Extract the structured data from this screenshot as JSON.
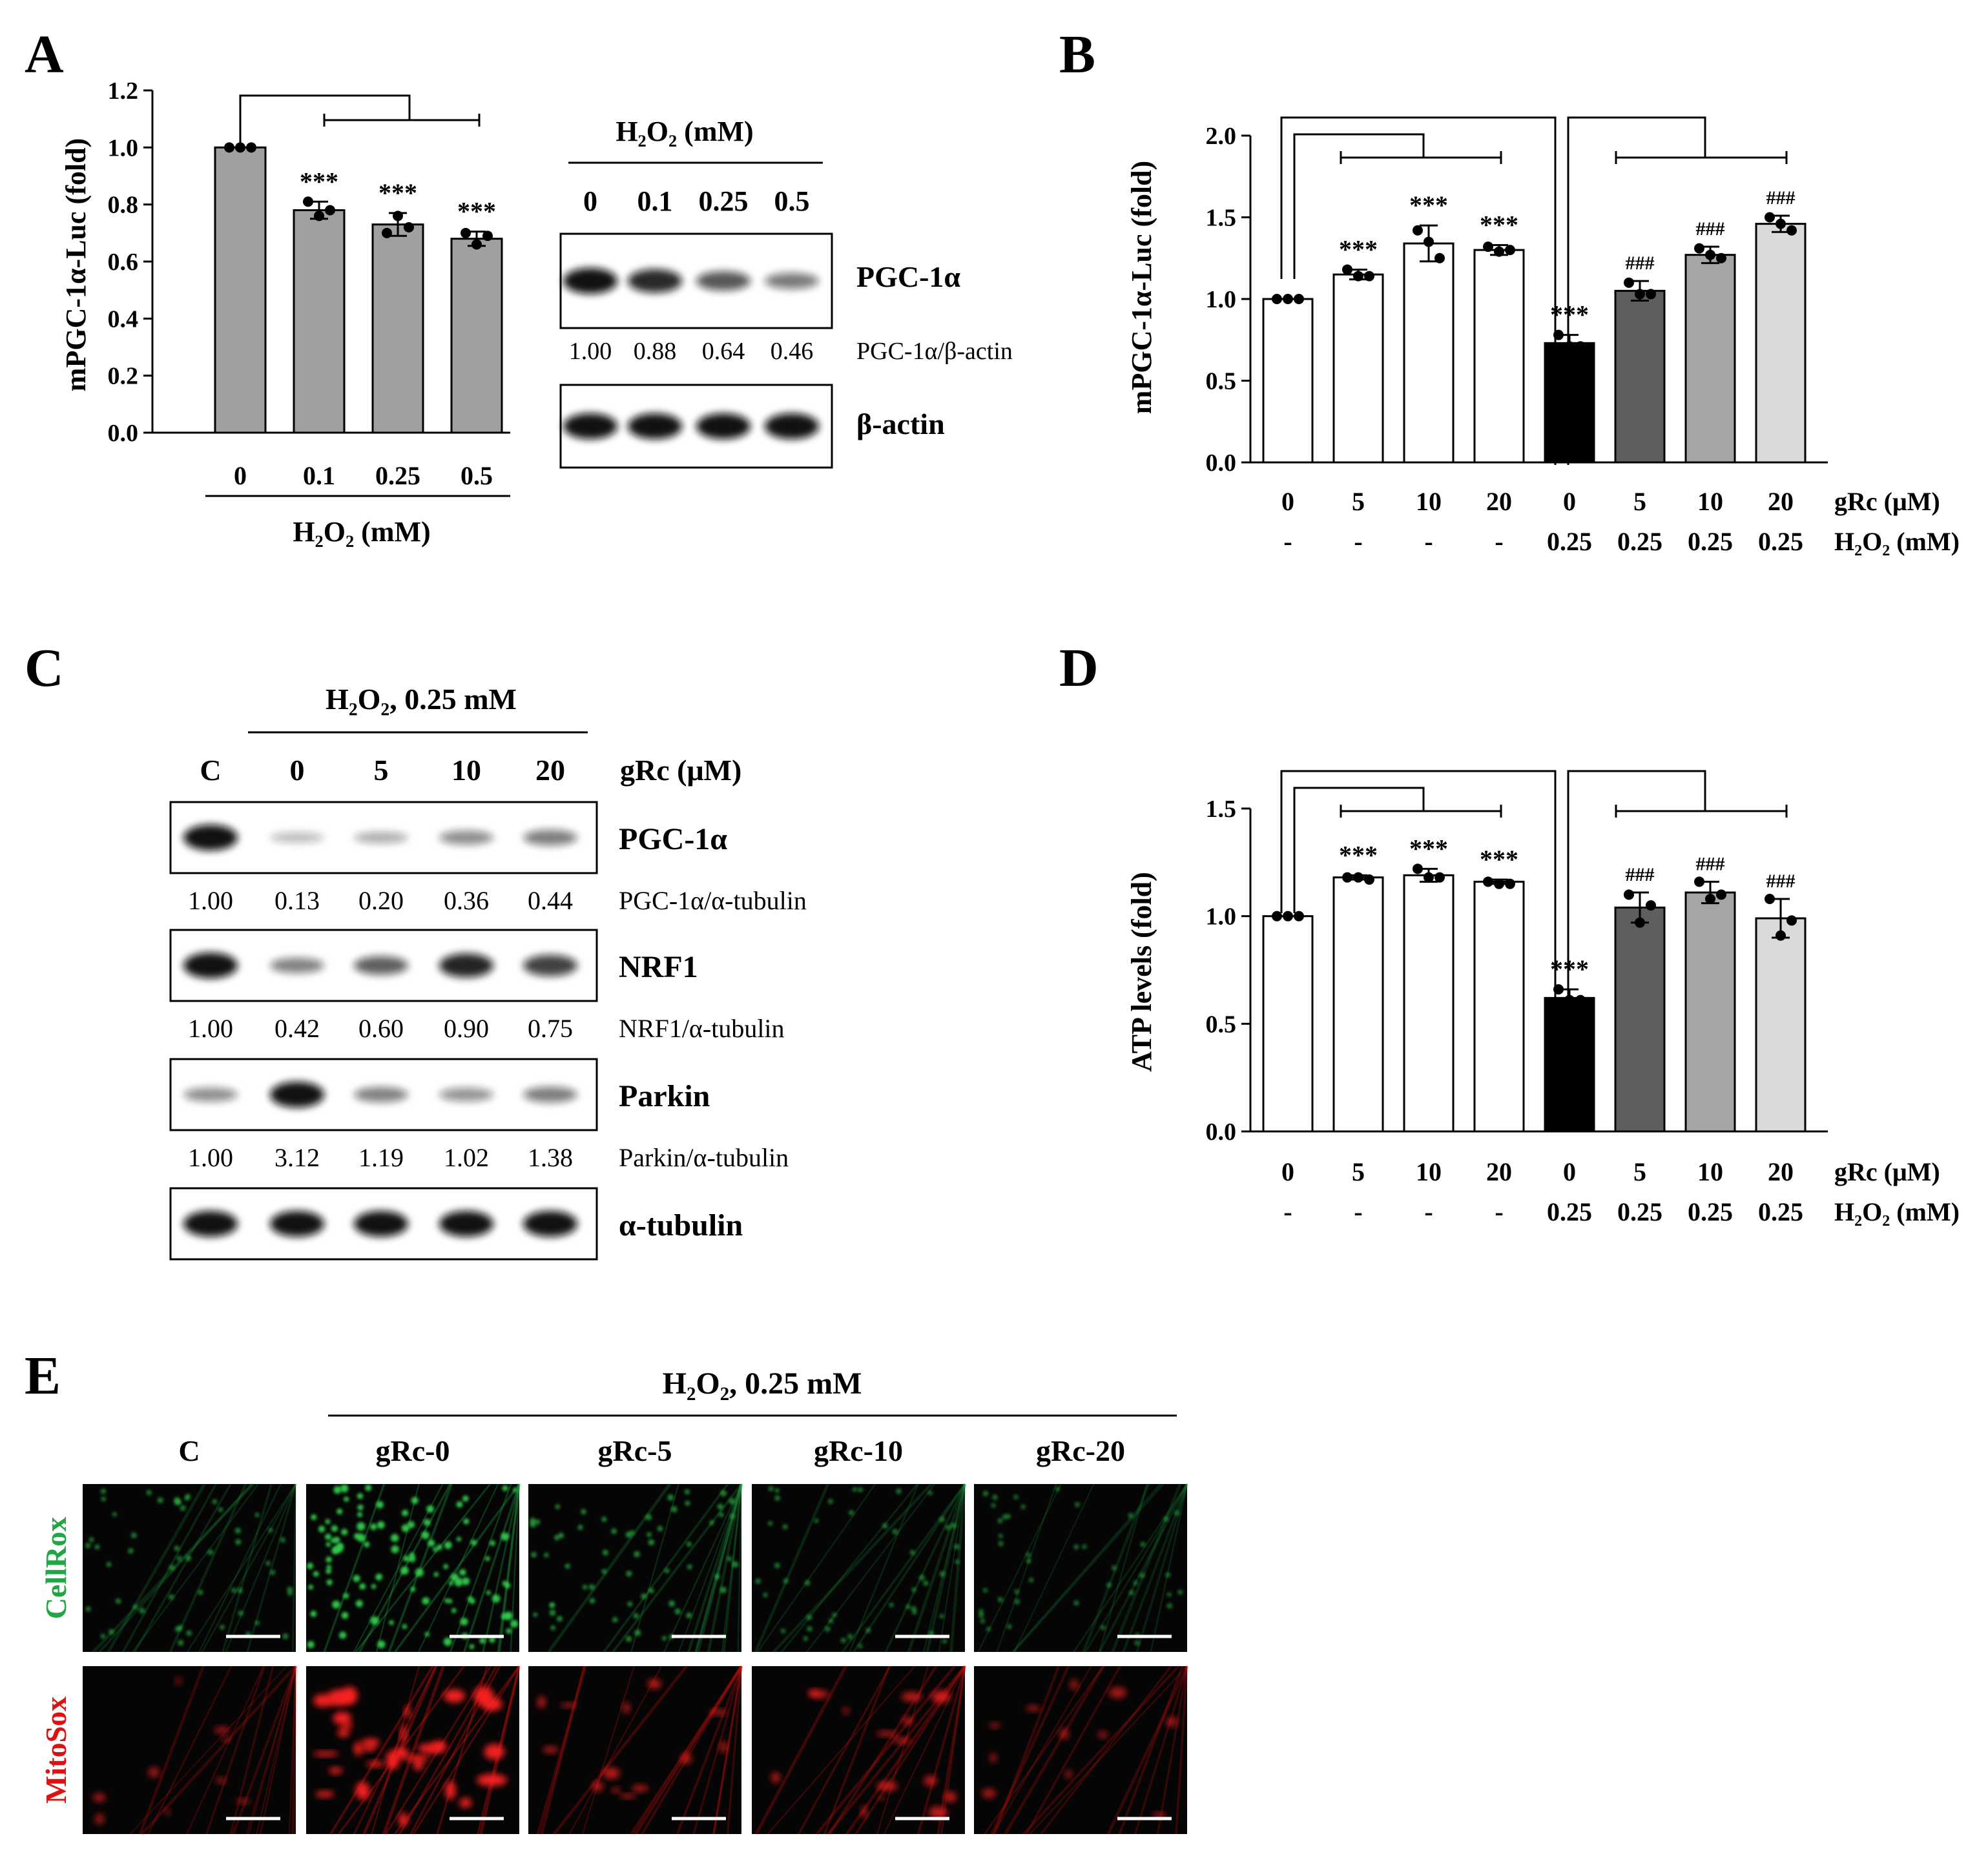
{
  "figure": {
    "panels": {
      "A": {
        "letter": "A",
        "blot_header": "H₂O₂ (mM)",
        "lane_labels": [
          "0",
          "0.1",
          "0.25",
          "0.5"
        ],
        "bands": [
          {
            "name": "PGC-1α",
            "intensities": [
              1.0,
              0.88,
              0.64,
              0.46
            ],
            "ratio_label": "PGC-1α/β-actin",
            "ratios": [
              "1.00",
              "0.88",
              "0.64",
              "0.46"
            ]
          },
          {
            "name": "β-actin",
            "intensities": [
              1.0,
              1.0,
              1.0,
              1.0
            ]
          }
        ]
      },
      "B": {
        "letter": "B"
      },
      "C": {
        "letter": "C",
        "treatment": "H₂O₂, 0.25 mM",
        "dose_label": "gRc (μM)",
        "lane_labels": [
          "C",
          "0",
          "5",
          "10",
          "20"
        ],
        "bands": [
          {
            "name": "PGC-1α",
            "ratio_label": "PGC-1α/α-tubulin",
            "ratios": [
              "1.00",
              "0.13",
              "0.20",
              "0.36",
              "0.44"
            ],
            "intensities": [
              1.0,
              0.13,
              0.2,
              0.36,
              0.44
            ]
          },
          {
            "name": "NRF1",
            "ratio_label": "NRF1/α-tubulin",
            "ratios": [
              "1.00",
              "0.42",
              "0.60",
              "0.90",
              "0.75"
            ],
            "intensities": [
              1.0,
              0.42,
              0.6,
              0.9,
              0.75
            ]
          },
          {
            "name": "Parkin",
            "ratio_label": "Parkin/α-tubulin",
            "ratios": [
              "1.00",
              "3.12",
              "1.19",
              "1.02",
              "1.38"
            ],
            "intensities": [
              0.35,
              1.0,
              0.42,
              0.33,
              0.44
            ]
          },
          {
            "name": "α-tubulin",
            "intensities": [
              1.0,
              1.0,
              1.0,
              1.0,
              1.0
            ]
          }
        ]
      },
      "D": {
        "letter": "D"
      },
      "E": {
        "letter": "E",
        "treatment": "H₂O₂, 0.25 mM",
        "columns": [
          "C",
          "gRc-0",
          "gRc-5",
          "gRc-10",
          "gRc-20"
        ],
        "rows": [
          {
            "name": "CellRox",
            "color": "#21a545",
            "intensities": [
              0.35,
              0.95,
              0.45,
              0.3,
              0.25
            ]
          },
          {
            "name": "MitoSox",
            "color": "#e01010",
            "intensities": [
              0.45,
              1.0,
              0.6,
              0.65,
              0.5
            ]
          }
        ]
      }
    }
  },
  "chart_data": [
    {
      "panel": "A",
      "type": "bar",
      "ylabel": "mPGC-1α-Luc (fold)",
      "xlabel": "H₂O₂ (mM)",
      "categories": [
        "0",
        "0.1",
        "0.25",
        "0.5"
      ],
      "values": [
        1.0,
        0.78,
        0.73,
        0.68
      ],
      "errors": [
        0.0,
        0.03,
        0.04,
        0.025
      ],
      "points": [
        [
          1.0,
          1.0,
          1.0
        ],
        [
          0.81,
          0.76,
          0.78
        ],
        [
          0.7,
          0.76,
          0.72
        ],
        [
          0.7,
          0.66,
          0.69
        ]
      ],
      "annotations": [
        "",
        "***",
        "***",
        "***"
      ],
      "ylim": [
        0,
        1.2
      ],
      "yticks": [
        "0.0",
        "0.2",
        "0.4",
        "0.6",
        "0.8",
        "1.0",
        "1.2"
      ],
      "bar_colors": [
        "#a0a0a0",
        "#a0a0a0",
        "#a0a0a0",
        "#a0a0a0"
      ]
    },
    {
      "panel": "B",
      "type": "bar",
      "ylabel": "mPGC-1α-Luc (fold)",
      "categories": [
        "0",
        "5",
        "10",
        "20",
        "0",
        "5",
        "10",
        "20"
      ],
      "row_label_1": "gRc (μM)",
      "row2": [
        "-",
        "-",
        "-",
        "-",
        "0.25",
        "0.25",
        "0.25",
        "0.25"
      ],
      "row_label_2": "H₂O₂ (mM)",
      "values": [
        1.0,
        1.15,
        1.34,
        1.3,
        0.73,
        1.05,
        1.27,
        1.46
      ],
      "errors": [
        0.0,
        0.03,
        0.11,
        0.03,
        0.05,
        0.06,
        0.05,
        0.05
      ],
      "points": [
        [
          1.0,
          1.0,
          1.0
        ],
        [
          1.18,
          1.14,
          1.14
        ],
        [
          1.42,
          1.35,
          1.25
        ],
        [
          1.32,
          1.29,
          1.3
        ],
        [
          0.78,
          0.71,
          0.71
        ],
        [
          1.1,
          1.03,
          1.03
        ],
        [
          1.31,
          1.27,
          1.25
        ],
        [
          1.5,
          1.46,
          1.42
        ]
      ],
      "annotations": [
        "",
        "***",
        "***",
        "***",
        "***",
        "###",
        "###",
        "###"
      ],
      "ylim": [
        0,
        2.0
      ],
      "yticks": [
        "0.0",
        "0.5",
        "1.0",
        "1.5",
        "2.0"
      ],
      "bar_colors": [
        "#ffffff",
        "#ffffff",
        "#ffffff",
        "#ffffff",
        "#000000",
        "#5e5e5e",
        "#a5a5a5",
        "#dadada"
      ]
    },
    {
      "panel": "D",
      "type": "bar",
      "ylabel": "ATP levels (fold)",
      "categories": [
        "0",
        "5",
        "10",
        "20",
        "0",
        "5",
        "10",
        "20"
      ],
      "row_label_1": "gRc (μM)",
      "row2": [
        "-",
        "-",
        "-",
        "-",
        "0.25",
        "0.25",
        "0.25",
        "0.25"
      ],
      "row_label_2": "H₂O₂ (mM)",
      "values": [
        1.0,
        1.18,
        1.19,
        1.16,
        0.62,
        1.04,
        1.11,
        0.99
      ],
      "errors": [
        0.0,
        0.01,
        0.03,
        0.01,
        0.04,
        0.07,
        0.05,
        0.09
      ],
      "points": [
        [
          1.0,
          1.0,
          1.0
        ],
        [
          1.18,
          1.18,
          1.17
        ],
        [
          1.22,
          1.18,
          1.18
        ],
        [
          1.16,
          1.15,
          1.15
        ],
        [
          0.66,
          0.61,
          0.61
        ],
        [
          1.1,
          0.97,
          1.05
        ],
        [
          1.16,
          1.08,
          1.1
        ],
        [
          1.08,
          0.91,
          0.98
        ]
      ],
      "annotations": [
        "",
        "***",
        "***",
        "***",
        "***",
        "###",
        "###",
        "###"
      ],
      "ylim": [
        0,
        1.5
      ],
      "yticks": [
        "0.0",
        "0.5",
        "1.0",
        "1.5"
      ],
      "bar_colors": [
        "#ffffff",
        "#ffffff",
        "#ffffff",
        "#ffffff",
        "#000000",
        "#5e5e5e",
        "#a5a5a5",
        "#dadada"
      ]
    }
  ]
}
